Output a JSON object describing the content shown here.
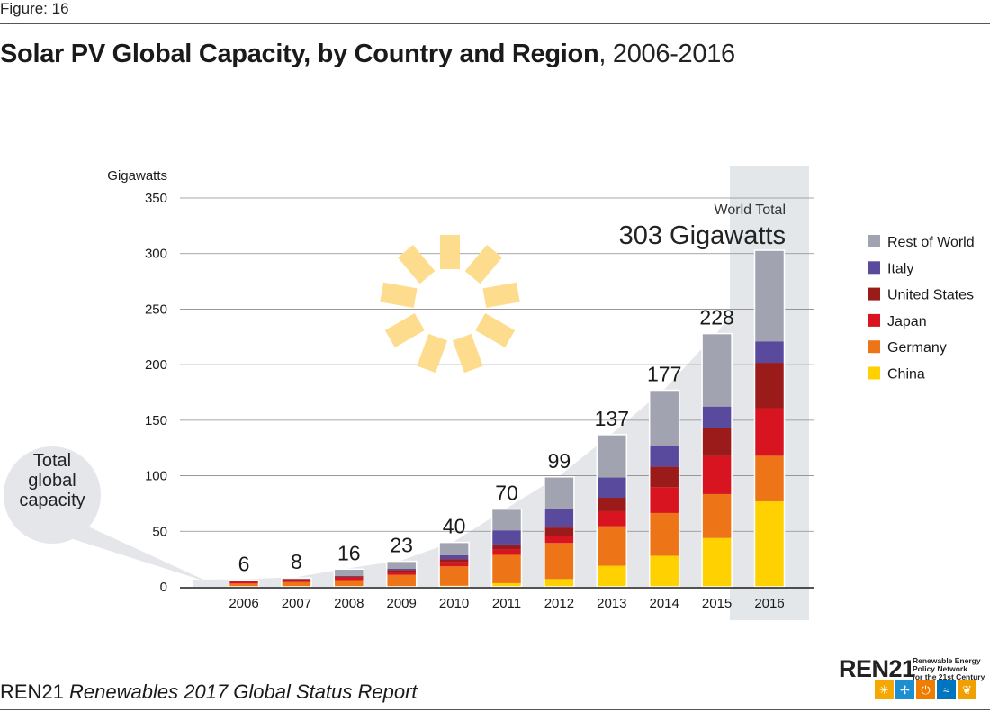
{
  "figure_label": "Figure: 16",
  "title_bold": "Solar PV Global Capacity, by Country and Region",
  "title_rest": ", 2006-2016",
  "footer": {
    "org": "REN21",
    "report": "Renewables 2017 Global Status Report"
  },
  "logo": {
    "word": "REN21",
    "tagline": [
      "Renewable Energy",
      "Policy Network",
      "for the 21st Century"
    ],
    "icon_names": [
      "sun-icon",
      "wind-turbine-icon",
      "power-icon",
      "water-waves-icon",
      "leaf-icon"
    ],
    "icon_colors": [
      "#f5a800",
      "#1b8fd1",
      "#ef7d00",
      "#0075bf",
      "#f0a000"
    ]
  },
  "callout": "Total global capacity",
  "world_total_label": "World Total",
  "world_total_value": "303 Gigawatts",
  "colors": {
    "China": "#ffd100",
    "Germany": "#ee7418",
    "Japan": "#d7141f",
    "United States": "#9b1b1b",
    "Italy": "#5a4a9e",
    "Rest of World": "#a1a4b0",
    "area": "#e4e6e9",
    "highlight": "#e4e7ea",
    "sun": "#fddc8e"
  },
  "chart_data": {
    "type": "bar",
    "stacked": true,
    "title": "Solar PV Global Capacity, by Country and Region, 2006-2016",
    "ylabel": "Gigawatts",
    "xlabel": "",
    "ylim": [
      0,
      350
    ],
    "yticks": [
      0,
      50,
      100,
      150,
      200,
      250,
      300,
      350
    ],
    "grid": true,
    "legend_position": "right",
    "categories": [
      "2006",
      "2007",
      "2008",
      "2009",
      "2010",
      "2011",
      "2012",
      "2013",
      "2014",
      "2015",
      "2016"
    ],
    "totals": [
      6,
      8,
      16,
      23,
      40,
      70,
      99,
      137,
      177,
      228,
      303
    ],
    "total_labels": [
      "6",
      "8",
      "16",
      "23",
      "40",
      "70",
      "99",
      "137",
      "177",
      "228",
      ""
    ],
    "highlight_category": "2016",
    "legend_order": [
      "Rest of World",
      "Italy",
      "United States",
      "Japan",
      "Germany",
      "China"
    ],
    "series": [
      {
        "name": "China",
        "values": [
          0.1,
          0.1,
          0.1,
          0.3,
          1,
          3.3,
          7,
          19,
          28,
          44,
          77
        ]
      },
      {
        "name": "Germany",
        "values": [
          2.9,
          4.2,
          6,
          10.5,
          17.5,
          25.5,
          32.5,
          35.5,
          38.5,
          39.5,
          41
        ]
      },
      {
        "name": "Japan",
        "values": [
          1.5,
          1.8,
          2.1,
          2.6,
          3.6,
          4.9,
          6.6,
          13.6,
          23.3,
          34.3,
          42.8
        ]
      },
      {
        "name": "United States",
        "values": [
          0.5,
          0.8,
          1.2,
          1.7,
          2.9,
          4.4,
          7.3,
          12.1,
          18.3,
          25.6,
          40.9
        ]
      },
      {
        "name": "Italy",
        "values": [
          0.1,
          0.1,
          0.5,
          1.1,
          3.5,
          12.8,
          16.4,
          18.2,
          18.6,
          18.9,
          19.3
        ]
      },
      {
        "name": "Rest of World",
        "values": [
          0.9,
          1,
          6.1,
          6.8,
          11.5,
          19.1,
          29.2,
          38.6,
          50.3,
          65.7,
          82
        ]
      }
    ]
  }
}
